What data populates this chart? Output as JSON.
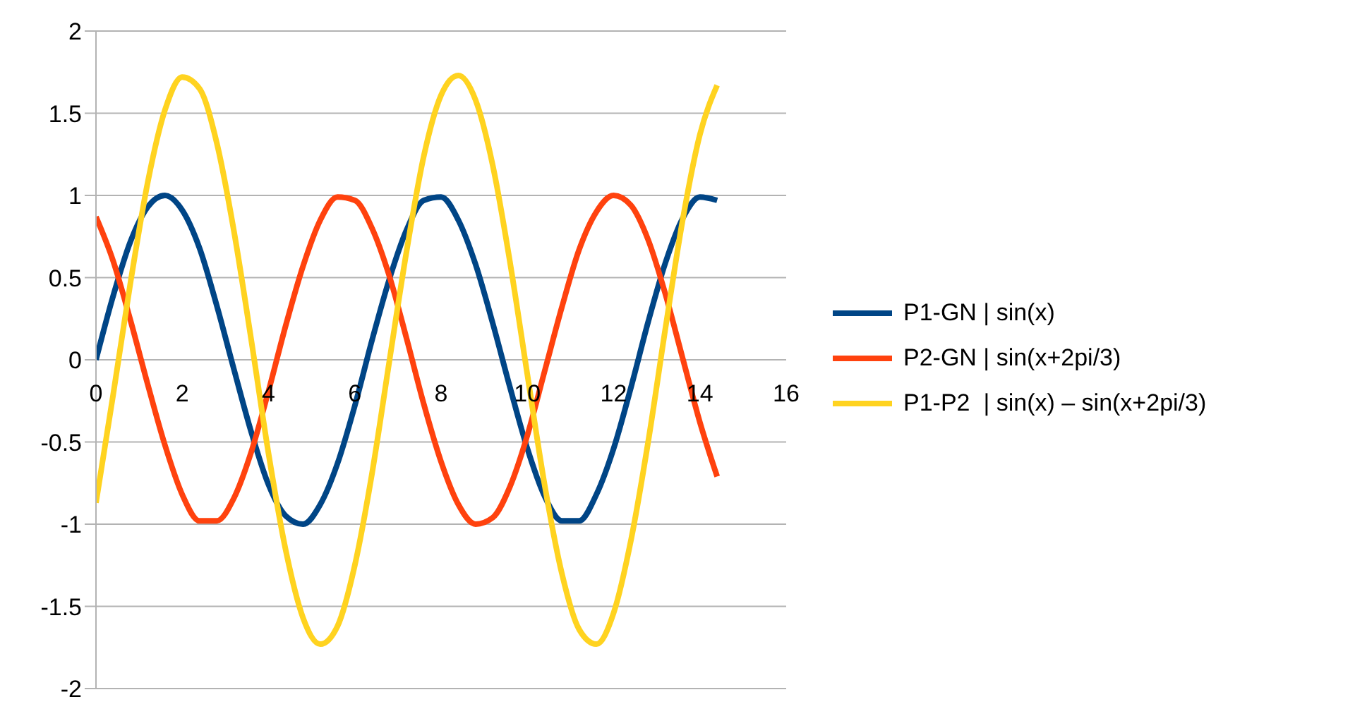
{
  "chart_data": {
    "type": "line",
    "x": [
      0,
      0.4,
      0.8,
      1.2,
      1.6,
      2.0,
      2.4,
      2.8,
      3.2,
      3.6,
      4.0,
      4.4,
      4.8,
      5.2,
      5.6,
      6.0,
      6.4,
      6.8,
      7.2,
      7.6,
      8.0,
      8.4,
      8.8,
      9.2,
      9.6,
      10.0,
      10.4,
      10.8,
      11.2,
      11.6,
      12.0,
      12.4,
      12.8,
      13.2,
      13.6,
      14.0,
      14.4
    ],
    "series": [
      {
        "name": "P1-GN | sin(x)",
        "color": "#004586",
        "values": [
          0,
          0.39,
          0.72,
          0.93,
          1.0,
          0.91,
          0.68,
          0.33,
          -0.06,
          -0.44,
          -0.76,
          -0.95,
          -1.0,
          -0.88,
          -0.63,
          -0.28,
          0.12,
          0.49,
          0.79,
          0.97,
          0.99,
          0.85,
          0.58,
          0.22,
          -0.17,
          -0.54,
          -0.83,
          -0.98,
          -0.98,
          -0.82,
          -0.54,
          -0.17,
          0.23,
          0.59,
          0.86,
          0.99,
          0.97
        ]
      },
      {
        "name": "P2-GN | sin(x+2pi/3)",
        "color": "#ff420e",
        "values": [
          0.87,
          0.6,
          0.24,
          -0.15,
          -0.52,
          -0.82,
          -0.98,
          -0.98,
          -0.84,
          -0.56,
          -0.19,
          0.21,
          0.57,
          0.85,
          0.99,
          0.97,
          0.8,
          0.51,
          0.13,
          -0.27,
          -0.62,
          -0.88,
          -1.0,
          -0.96,
          -0.77,
          -0.46,
          -0.07,
          0.32,
          0.67,
          0.9,
          1.0,
          0.94,
          0.73,
          0.4,
          0.01,
          -0.38,
          -0.71
        ]
      },
      {
        "name": "P1-P2  | sin(x) – sin(x+2pi/3)",
        "color": "#ffd320",
        "values": [
          -0.87,
          -0.21,
          0.47,
          1.08,
          1.52,
          1.72,
          1.65,
          1.32,
          0.78,
          0.12,
          -0.57,
          -1.16,
          -1.57,
          -1.73,
          -1.62,
          -1.25,
          -0.69,
          -0.01,
          0.66,
          1.24,
          1.61,
          1.73,
          1.58,
          1.18,
          0.59,
          -0.09,
          -0.76,
          -1.3,
          -1.64,
          -1.73,
          -1.54,
          -1.1,
          -0.5,
          0.19,
          0.85,
          1.37,
          1.67
        ]
      }
    ],
    "xlim": [
      0,
      16
    ],
    "xticks": [
      0,
      2,
      4,
      6,
      8,
      10,
      12,
      14,
      16
    ],
    "ylim": [
      -2,
      2
    ],
    "yticks": [
      -2,
      -1.5,
      -1,
      -0.5,
      0,
      0.5,
      1,
      1.5,
      2
    ],
    "grid": "y",
    "legend": "right",
    "marker": "none",
    "line_style": "solid"
  }
}
